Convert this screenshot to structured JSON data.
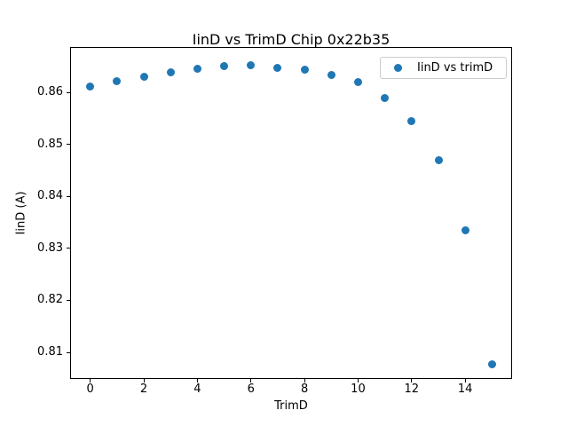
{
  "figure": {
    "title": "IinD vs TrimD Chip 0x22b35"
  },
  "chart_data": {
    "type": "scatter",
    "title": "IinD vs TrimD Chip 0x22b35",
    "xlabel": "TrimD",
    "ylabel": "IinD (A)",
    "legend": {
      "entries": [
        "IinD vs trimD"
      ],
      "position": "upper right"
    },
    "x": [
      0,
      1,
      2,
      3,
      4,
      5,
      6,
      7,
      8,
      9,
      10,
      11,
      12,
      13,
      14,
      15
    ],
    "series": [
      {
        "name": "IinD vs trimD",
        "values": [
          0.8611,
          0.8621,
          0.863,
          0.8638,
          0.8645,
          0.865,
          0.8652,
          0.8647,
          0.8643,
          0.8634,
          0.8619,
          0.8589,
          0.8544,
          0.8469,
          0.8334,
          0.8078
        ]
      }
    ],
    "xlim": [
      -0.75,
      15.75
    ],
    "ylim": [
      0.8049,
      0.8687
    ],
    "xticks": [
      0,
      2,
      4,
      6,
      8,
      10,
      12,
      14
    ],
    "yticks": [
      0.81,
      0.82,
      0.83,
      0.84,
      0.85,
      0.86
    ],
    "grid": false,
    "marker_color": "#1f77b4",
    "background_color": "#ffffff",
    "spine_color": "#000000"
  }
}
